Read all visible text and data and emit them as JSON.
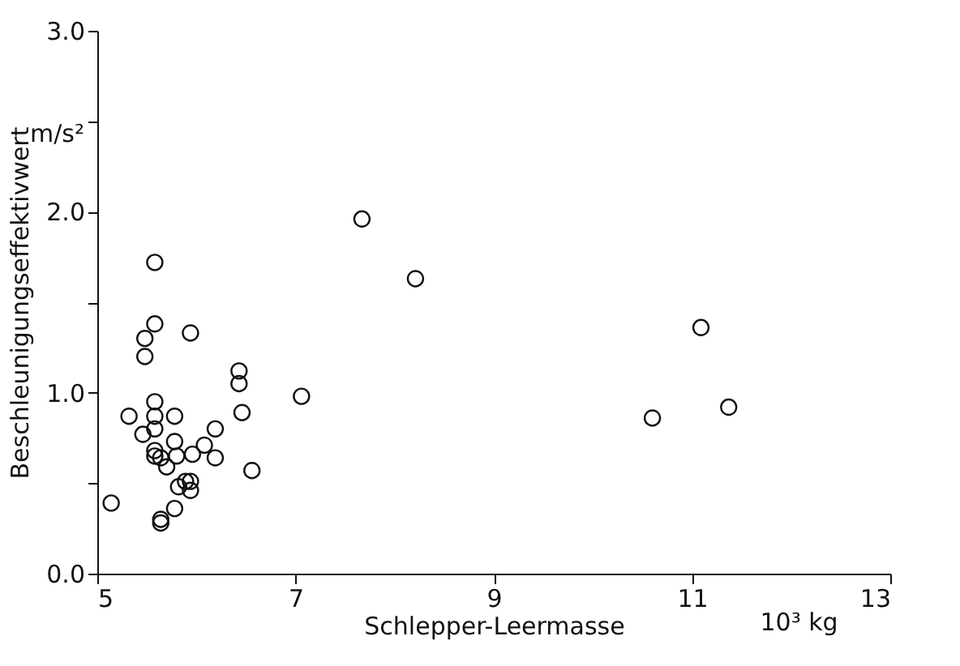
{
  "chart_data": {
    "type": "scatter",
    "xlabel": "Schlepper-Leermasse",
    "ylabel": "Beschleunigungseffektivwert",
    "annotations": [
      "m/s²",
      "10³ kg"
    ],
    "x": [
      5.58,
      5.58,
      5.48,
      5.94,
      5.48,
      6.43,
      6.43,
      5.58,
      7.06,
      5.32,
      5.58,
      5.78,
      6.46,
      5.58,
      5.46,
      6.19,
      6.08,
      5.78,
      5.58,
      5.58,
      5.64,
      5.8,
      5.96,
      6.19,
      5.7,
      6.56,
      5.89,
      5.94,
      5.82,
      5.94,
      5.14,
      5.78,
      5.64,
      5.64,
      7.67,
      8.21,
      11.09,
      10.6,
      11.37
    ],
    "series": [
      {
        "color": "#111111",
        "values": [
          1.72,
          1.38,
          1.3,
          1.33,
          1.2,
          1.12,
          1.05,
          0.95,
          0.98,
          0.87,
          0.87,
          0.87,
          0.89,
          0.8,
          0.77,
          0.8,
          0.71,
          0.73,
          0.68,
          0.65,
          0.64,
          0.65,
          0.66,
          0.64,
          0.59,
          0.57,
          0.51,
          0.51,
          0.48,
          0.46,
          0.39,
          0.36,
          0.3,
          0.28,
          1.96,
          1.63,
          1.36,
          0.86,
          0.92
        ]
      }
    ],
    "xlim": [
      5,
      13
    ],
    "xticks": [
      5,
      7,
      9,
      11,
      13
    ],
    "ylim": [
      0,
      3
    ],
    "yticks": [
      {
        "value": 0,
        "label": "0.0"
      },
      {
        "value": 0.5,
        "label": null
      },
      {
        "value": 1,
        "label": "1.0"
      },
      {
        "value": 1.5,
        "label": null
      },
      {
        "value": 2,
        "label": "2.0"
      },
      {
        "value": 2.5,
        "label": null
      },
      {
        "value": 3,
        "label": "3.0"
      }
    ],
    "marker": "circle",
    "grid": false
  }
}
